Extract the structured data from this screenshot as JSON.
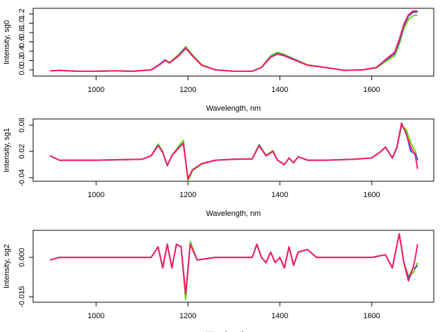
{
  "chart_data": [
    {
      "type": "line",
      "xlabel": "Wavelength, nm",
      "ylabel": "Intensity, sg0",
      "xlim": [
        863,
        1735
      ],
      "xticks": [
        1000,
        1200,
        1400,
        1600
      ],
      "ylim": [
        -0.133,
        1.319
      ],
      "yticks": [
        {
          "value": 0,
          "label": "0.0"
        },
        0.2,
        0.4,
        0.6,
        0.8,
        {
          "value": 1,
          "label": "1.0"
        },
        1.2
      ],
      "x": [
        900,
        920,
        960,
        1000,
        1040,
        1080,
        1120,
        1140,
        1150,
        1160,
        1180,
        1195,
        1210,
        1230,
        1260,
        1300,
        1340,
        1360,
        1380,
        1395,
        1410,
        1430,
        1460,
        1500,
        1540,
        1580,
        1610,
        1630,
        1650,
        1660,
        1670,
        1680,
        1690,
        1700
      ],
      "series": [
        {
          "color": "#66dd00",
          "values": [
            -0.02,
            -0.01,
            -0.03,
            -0.03,
            -0.02,
            -0.03,
            0.0,
            0.13,
            0.22,
            0.16,
            0.33,
            0.5,
            0.32,
            0.11,
            0.0,
            -0.03,
            -0.03,
            0.06,
            0.3,
            0.38,
            0.33,
            0.24,
            0.11,
            0.05,
            -0.01,
            0.0,
            0.04,
            0.18,
            0.3,
            0.55,
            0.88,
            1.08,
            1.16,
            1.18
          ]
        },
        {
          "color": "#3355ff",
          "values": [
            -0.02,
            -0.01,
            -0.03,
            -0.03,
            -0.02,
            -0.03,
            0.0,
            0.13,
            0.21,
            0.15,
            0.31,
            0.47,
            0.3,
            0.1,
            0.0,
            -0.03,
            -0.03,
            0.05,
            0.28,
            0.35,
            0.31,
            0.23,
            0.1,
            0.05,
            -0.01,
            0.0,
            0.05,
            0.2,
            0.35,
            0.6,
            0.94,
            1.15,
            1.23,
            1.24
          ]
        },
        {
          "color": "#ff1a66",
          "values": [
            -0.02,
            -0.01,
            -0.03,
            -0.03,
            -0.02,
            -0.03,
            0.0,
            0.12,
            0.2,
            0.15,
            0.3,
            0.46,
            0.3,
            0.1,
            0.0,
            -0.03,
            -0.03,
            0.05,
            0.27,
            0.34,
            0.3,
            0.22,
            0.1,
            0.05,
            -0.01,
            0.0,
            0.05,
            0.22,
            0.38,
            0.65,
            0.98,
            1.18,
            1.26,
            1.26
          ]
        }
      ]
    },
    {
      "type": "line",
      "xlabel": "Wavelength, nm",
      "ylabel": "Intensity, sg1",
      "xlim": [
        863,
        1735
      ],
      "xticks": [
        1000,
        1200,
        1400,
        1600
      ],
      "ylim": [
        -0.048,
        0.094
      ],
      "yticks": [
        -0.04,
        0.02,
        0.08
      ],
      "x": [
        900,
        920,
        1000,
        1100,
        1120,
        1135,
        1145,
        1155,
        1165,
        1180,
        1190,
        1200,
        1210,
        1230,
        1260,
        1300,
        1340,
        1355,
        1370,
        1385,
        1395,
        1410,
        1420,
        1430,
        1440,
        1460,
        1500,
        1560,
        1600,
        1620,
        1630,
        1645,
        1655,
        1665,
        1675,
        1685,
        1695,
        1700
      ],
      "series": [
        {
          "color": "#66dd00",
          "values": [
            0.01,
            0.0,
            0.0,
            0.002,
            0.01,
            0.037,
            0.02,
            -0.013,
            0.011,
            0.032,
            0.045,
            -0.047,
            -0.024,
            -0.009,
            0.0,
            0.002,
            0.003,
            0.036,
            0.011,
            0.022,
            0.0,
            -0.011,
            0.005,
            -0.006,
            0.008,
            0.0,
            0.0,
            0.002,
            0.005,
            0.02,
            0.03,
            0.004,
            0.028,
            0.078,
            0.07,
            0.04,
            0.02,
            0.0
          ]
        },
        {
          "color": "#3355ff",
          "values": [
            0.01,
            0.0,
            0.0,
            0.002,
            0.01,
            0.034,
            0.018,
            -0.012,
            0.01,
            0.029,
            0.039,
            -0.043,
            -0.022,
            -0.008,
            0.0,
            0.002,
            0.003,
            0.034,
            0.01,
            0.02,
            0.0,
            -0.01,
            0.005,
            -0.006,
            0.008,
            0.0,
            0.0,
            0.002,
            0.005,
            0.02,
            0.03,
            0.005,
            0.03,
            0.082,
            0.062,
            0.02,
            0.015,
            0.0
          ]
        },
        {
          "color": "#ff1a66",
          "values": [
            0.01,
            0.0,
            0.0,
            0.002,
            0.01,
            0.033,
            0.018,
            -0.012,
            0.01,
            0.028,
            0.038,
            -0.042,
            -0.022,
            -0.008,
            0.0,
            0.002,
            0.003,
            0.033,
            0.01,
            0.02,
            0.0,
            -0.01,
            0.005,
            -0.006,
            0.008,
            0.0,
            0.0,
            0.002,
            0.005,
            0.02,
            0.03,
            0.005,
            0.03,
            0.085,
            0.06,
            0.03,
            0.01,
            -0.02
          ]
        }
      ]
    },
    {
      "type": "line",
      "xlabel": "Wavelength, nm",
      "ylabel": "Intensity, sg2",
      "xlim": [
        863,
        1735
      ],
      "xticks": [
        1000,
        1200,
        1400,
        1600
      ],
      "ylim": [
        -0.0171,
        0.0103
      ],
      "yticks": [
        -0.015,
        {
          "value": 0,
          "label": "0.000"
        }
      ],
      "x": [
        900,
        920,
        1100,
        1120,
        1135,
        1145,
        1155,
        1165,
        1175,
        1185,
        1195,
        1205,
        1220,
        1260,
        1340,
        1350,
        1360,
        1370,
        1380,
        1390,
        1400,
        1410,
        1420,
        1430,
        1440,
        1460,
        1480,
        1560,
        1600,
        1630,
        1645,
        1660,
        1670,
        1680,
        1690,
        1695,
        1700
      ],
      "series": [
        {
          "color": "#66dd00",
          "values": [
            -0.001,
            0.0,
            0.0,
            0.0,
            0.004,
            -0.004,
            0.005,
            -0.004,
            0.005,
            0.004,
            -0.016,
            0.006,
            -0.001,
            0.0,
            0.0,
            0.005,
            0.0,
            -0.002,
            0.002,
            -0.002,
            0.0,
            -0.004,
            0.004,
            -0.003,
            0.002,
            0.003,
            0.0,
            0.0,
            0.0,
            0.001,
            -0.004,
            0.009,
            -0.002,
            -0.007,
            -0.006,
            -0.004,
            -0.002
          ]
        },
        {
          "color": "#3355ff",
          "values": [
            -0.001,
            0.0,
            0.0,
            0.0,
            0.004,
            -0.004,
            0.005,
            -0.004,
            0.005,
            0.004,
            -0.014,
            0.005,
            -0.001,
            0.0,
            0.0,
            0.005,
            0.0,
            -0.002,
            0.002,
            -0.002,
            0.0,
            -0.004,
            0.004,
            -0.003,
            0.002,
            0.003,
            0.0,
            0.0,
            0.0,
            0.001,
            -0.004,
            0.009,
            -0.002,
            -0.008,
            -0.004,
            -0.004,
            -0.003
          ]
        },
        {
          "color": "#ff1a66",
          "values": [
            -0.001,
            0.0,
            0.0,
            0.0,
            0.004,
            -0.004,
            0.005,
            -0.004,
            0.005,
            0.004,
            -0.014,
            0.005,
            -0.001,
            0.0,
            0.0,
            0.005,
            0.0,
            -0.002,
            0.002,
            -0.002,
            0.0,
            -0.004,
            0.004,
            -0.003,
            0.002,
            0.003,
            0.0,
            0.0,
            0.0,
            0.001,
            -0.004,
            0.009,
            -0.002,
            -0.009,
            -0.004,
            0.0,
            0.005
          ]
        }
      ]
    }
  ]
}
